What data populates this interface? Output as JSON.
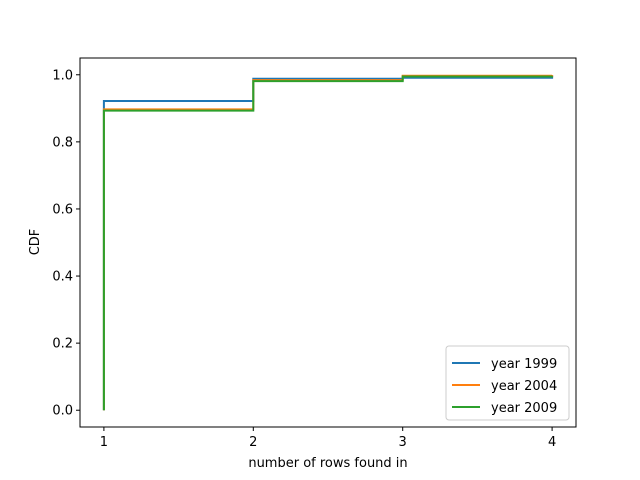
{
  "chart_data": {
    "type": "line",
    "step": "post",
    "title": "",
    "xlabel": "number of rows found in",
    "ylabel": "CDF",
    "xlim": [
      0.84,
      4.16
    ],
    "ylim": [
      -0.05,
      1.05
    ],
    "xticks": [
      1,
      2,
      3,
      4
    ],
    "xtick_labels": [
      "1",
      "2",
      "3",
      "4"
    ],
    "yticks": [
      0.0,
      0.2,
      0.4,
      0.6,
      0.8,
      1.0
    ],
    "ytick_labels": [
      "0.0",
      "0.2",
      "0.4",
      "0.6",
      "0.8",
      "1.0"
    ],
    "grid": false,
    "legend_position": "lower-right",
    "series": [
      {
        "name": "year 1999",
        "color": "#1f77b4",
        "x": [
          1,
          1,
          2,
          3,
          4
        ],
        "y": [
          0.0,
          0.922,
          0.988,
          0.991,
          0.999
        ]
      },
      {
        "name": "year 2004",
        "color": "#ff7f0e",
        "x": [
          1,
          1,
          2,
          3,
          4
        ],
        "y": [
          0.0,
          0.897,
          0.984,
          0.997,
          0.999
        ]
      },
      {
        "name": "year 2009",
        "color": "#2ca02c",
        "x": [
          1,
          1,
          2,
          3,
          4
        ],
        "y": [
          0.0,
          0.893,
          0.981,
          0.995,
          0.996
        ]
      }
    ]
  }
}
